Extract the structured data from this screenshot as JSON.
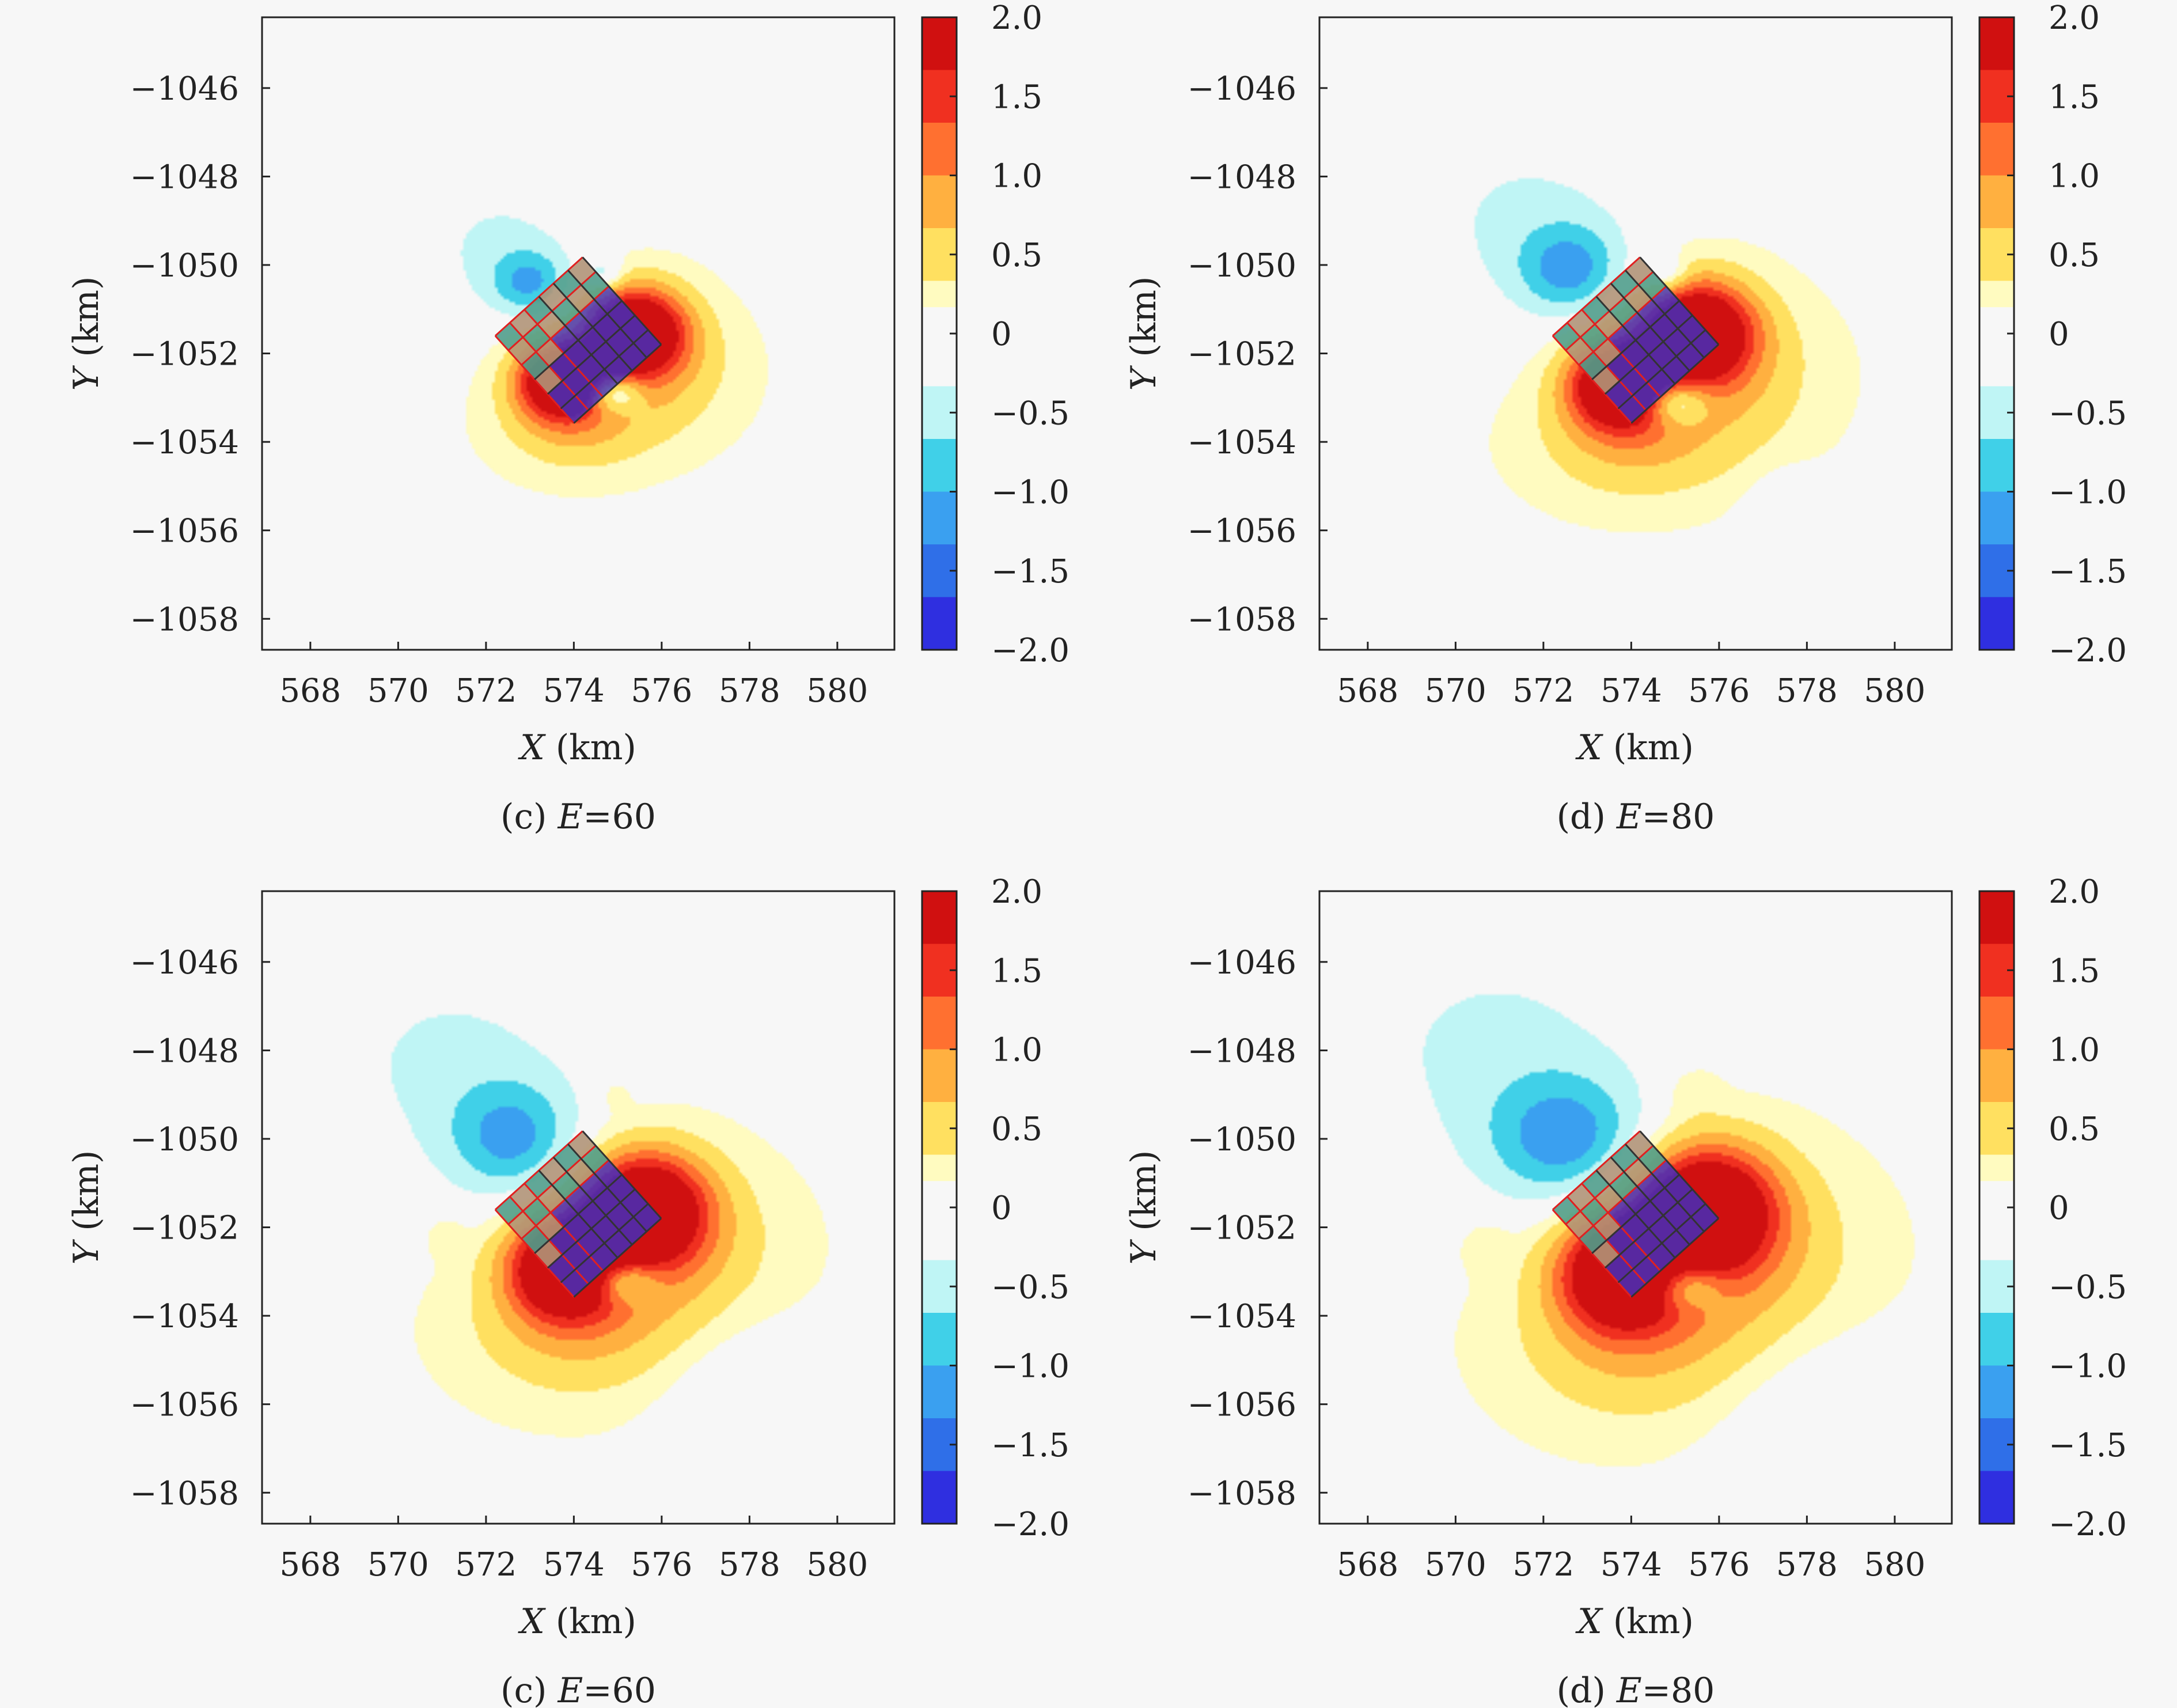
{
  "colors": {
    "background": "#f7f7f7",
    "frame": "#222222",
    "grid_red": "#e02020",
    "grid_green": "#40c040",
    "grid_blue": "#3030d0",
    "grid_dark": "#333333"
  },
  "colorbar": {
    "ticks": [
      {
        "value": 2.0,
        "label": "2.0"
      },
      {
        "value": 1.5,
        "label": "1.5"
      },
      {
        "value": 1.0,
        "label": "1.0"
      },
      {
        "value": 0.5,
        "label": "0.5"
      },
      {
        "value": 0,
        "label": "0"
      },
      {
        "value": -0.5,
        "label": "−0.5"
      },
      {
        "value": -1.0,
        "label": "−1.0"
      },
      {
        "value": -1.5,
        "label": "−1.5"
      },
      {
        "value": -2.0,
        "label": "−2.0"
      }
    ],
    "range": [
      -2.0,
      2.0
    ],
    "colormap": [
      "#2f2fe0",
      "#2f6fe8",
      "#3aa0f0",
      "#40d0e8",
      "#bff5f5",
      "#f7f7f7",
      "#fffbc0",
      "#ffe060",
      "#ffb040",
      "#ff7030",
      "#f03020",
      "#d01010"
    ]
  },
  "chart_data": [
    {
      "type": "heatmap",
      "caption_prefix": "(c) ",
      "caption_var": "E",
      "caption_suffix": "=60",
      "xlabel_var": "X",
      "xlabel_unit": " (km)",
      "ylabel_var": "Y",
      "ylabel_unit": " (km)",
      "xlim": [
        566.9,
        581.3
      ],
      "ylim": [
        -1058.7,
        -1044.4
      ],
      "xticks": [
        568,
        570,
        572,
        574,
        576,
        578,
        580
      ],
      "xtick_labels": [
        "568",
        "570",
        "572",
        "574",
        "576",
        "578",
        "580"
      ],
      "yticks": [
        -1046,
        -1048,
        -1050,
        -1052,
        -1054,
        -1056,
        -1058
      ],
      "ytick_labels": [
        "−1046",
        "−1048",
        "−1050",
        "−1052",
        "−1054",
        "−1056",
        "−1058"
      ],
      "zlim": [
        -2,
        2
      ],
      "fault_center": [
        574.1,
        -1051.7
      ],
      "blobs": [
        {
          "x": 572.3,
          "y": -1049.6,
          "sx": 1.3,
          "sy": 1.1,
          "amp": -0.4
        },
        {
          "x": 573.0,
          "y": -1050.4,
          "sx": 0.6,
          "sy": 0.5,
          "amp": -0.9
        },
        {
          "x": 575.4,
          "y": -1051.5,
          "sx": 0.8,
          "sy": 0.7,
          "amp": 2.6
        },
        {
          "x": 573.7,
          "y": -1052.6,
          "sx": 0.7,
          "sy": 0.6,
          "amp": 2.6
        },
        {
          "x": 575.8,
          "y": -1052.4,
          "sx": 1.3,
          "sy": 1.1,
          "amp": 0.6
        },
        {
          "x": 574.0,
          "y": -1053.6,
          "sx": 1.2,
          "sy": 0.8,
          "amp": 0.6
        },
        {
          "x": 574.9,
          "y": -1052.9,
          "sx": 0.45,
          "sy": 0.3,
          "amp": -1.2
        },
        {
          "x": 574.7,
          "y": -1050.2,
          "sx": 0.3,
          "sy": 0.25,
          "amp": -0.6
        }
      ]
    },
    {
      "type": "heatmap",
      "caption_prefix": "(d) ",
      "caption_var": "E",
      "caption_suffix": "=80",
      "xlabel_var": "X",
      "xlabel_unit": " (km)",
      "ylabel_var": "Y",
      "ylabel_unit": " (km)",
      "xlim": [
        566.9,
        581.3
      ],
      "ylim": [
        -1058.7,
        -1044.4
      ],
      "xticks": [
        568,
        570,
        572,
        574,
        576,
        578,
        580
      ],
      "xtick_labels": [
        "568",
        "570",
        "572",
        "574",
        "576",
        "578",
        "580"
      ],
      "yticks": [
        -1046,
        -1048,
        -1050,
        -1052,
        -1054,
        -1056,
        -1058
      ],
      "ytick_labels": [
        "−1046",
        "−1048",
        "−1050",
        "−1052",
        "−1054",
        "−1056",
        "−1058"
      ],
      "zlim": [
        -2,
        2
      ],
      "fault_center": [
        574.1,
        -1051.7
      ],
      "blobs": [
        {
          "x": 571.6,
          "y": -1049.0,
          "sx": 1.8,
          "sy": 1.5,
          "amp": -0.4
        },
        {
          "x": 572.6,
          "y": -1050.1,
          "sx": 0.8,
          "sy": 0.7,
          "amp": -1.0
        },
        {
          "x": 575.5,
          "y": -1051.5,
          "sx": 0.9,
          "sy": 0.8,
          "amp": 2.6
        },
        {
          "x": 573.7,
          "y": -1052.7,
          "sx": 0.8,
          "sy": 0.7,
          "amp": 2.6
        },
        {
          "x": 576.0,
          "y": -1052.5,
          "sx": 1.6,
          "sy": 1.3,
          "amp": 0.6
        },
        {
          "x": 574.0,
          "y": -1054.0,
          "sx": 1.6,
          "sy": 1.0,
          "amp": 0.6
        },
        {
          "x": 575.0,
          "y": -1053.1,
          "sx": 0.5,
          "sy": 0.35,
          "amp": -1.2
        },
        {
          "x": 574.8,
          "y": -1050.2,
          "sx": 0.35,
          "sy": 0.3,
          "amp": -0.6
        },
        {
          "x": 577.5,
          "y": -1055.5,
          "sx": 0.6,
          "sy": 0.6,
          "amp": -0.3
        }
      ]
    },
    {
      "type": "heatmap",
      "caption_prefix": "(c) ",
      "caption_var": "E",
      "caption_suffix": "=60",
      "xlabel_var": "X",
      "xlabel_unit": " (km)",
      "ylabel_var": "Y",
      "ylabel_unit": " (km)",
      "xlim": [
        566.9,
        581.3
      ],
      "ylim": [
        -1058.7,
        -1044.4
      ],
      "xticks": [
        568,
        570,
        572,
        574,
        576,
        578,
        580
      ],
      "xtick_labels": [
        "568",
        "570",
        "572",
        "574",
        "576",
        "578",
        "580"
      ],
      "yticks": [
        -1046,
        -1048,
        -1050,
        -1052,
        -1054,
        -1056,
        -1058
      ],
      "ytick_labels": [
        "−1046",
        "−1048",
        "−1050",
        "−1052",
        "−1054",
        "−1056",
        "−1058"
      ],
      "zlim": [
        -2,
        2
      ],
      "fault_center": [
        574.1,
        -1051.7
      ],
      "blobs": [
        {
          "x": 571.2,
          "y": -1048.3,
          "sx": 2.2,
          "sy": 1.8,
          "amp": -0.4
        },
        {
          "x": 572.6,
          "y": -1050.0,
          "sx": 1.0,
          "sy": 0.9,
          "amp": -1.0
        },
        {
          "x": 575.6,
          "y": -1051.6,
          "sx": 1.0,
          "sy": 0.9,
          "amp": 2.6
        },
        {
          "x": 573.8,
          "y": -1052.9,
          "sx": 0.9,
          "sy": 0.8,
          "amp": 2.6
        },
        {
          "x": 576.2,
          "y": -1052.6,
          "sx": 1.8,
          "sy": 1.5,
          "amp": 0.6
        },
        {
          "x": 574.0,
          "y": -1054.3,
          "sx": 1.8,
          "sy": 1.2,
          "amp": 0.6
        },
        {
          "x": 575.1,
          "y": -1053.2,
          "sx": 0.55,
          "sy": 0.35,
          "amp": -1.2
        },
        {
          "x": 577.8,
          "y": -1055.8,
          "sx": 1.3,
          "sy": 1.3,
          "amp": -0.35
        },
        {
          "x": 571.1,
          "y": -1052.2,
          "sx": 0.3,
          "sy": 0.3,
          "amp": 0.25
        },
        {
          "x": 574.9,
          "y": -1049.0,
          "sx": 0.3,
          "sy": 0.3,
          "amp": 0.2
        }
      ]
    },
    {
      "type": "heatmap",
      "caption_prefix": "(d) ",
      "caption_var": "E",
      "caption_suffix": "=80",
      "xlabel_var": "X",
      "xlabel_unit": " (km)",
      "ylabel_var": "Y",
      "ylabel_unit": " (km)",
      "xlim": [
        566.9,
        581.3
      ],
      "ylim": [
        -1058.7,
        -1044.4
      ],
      "xticks": [
        568,
        570,
        572,
        574,
        576,
        578,
        580
      ],
      "xtick_labels": [
        "568",
        "570",
        "572",
        "574",
        "576",
        "578",
        "580"
      ],
      "yticks": [
        -1046,
        -1048,
        -1050,
        -1052,
        -1054,
        -1056,
        -1058
      ],
      "ytick_labels": [
        "−1046",
        "−1048",
        "−1050",
        "−1052",
        "−1054",
        "−1056",
        "−1058"
      ],
      "zlim": [
        -2,
        2
      ],
      "fault_center": [
        574.1,
        -1051.7
      ],
      "blobs": [
        {
          "x": 570.9,
          "y": -1048.0,
          "sx": 2.6,
          "sy": 2.1,
          "amp": -0.4
        },
        {
          "x": 572.5,
          "y": -1050.0,
          "sx": 1.2,
          "sy": 1.0,
          "amp": -1.1
        },
        {
          "x": 575.7,
          "y": -1051.6,
          "sx": 1.1,
          "sy": 1.0,
          "amp": 2.6
        },
        {
          "x": 573.8,
          "y": -1053.0,
          "sx": 1.0,
          "sy": 0.9,
          "amp": 2.6
        },
        {
          "x": 576.4,
          "y": -1052.7,
          "sx": 2.0,
          "sy": 1.7,
          "amp": 0.65
        },
        {
          "x": 574.0,
          "y": -1054.6,
          "sx": 2.0,
          "sy": 1.4,
          "amp": 0.6
        },
        {
          "x": 575.2,
          "y": -1053.3,
          "sx": 0.6,
          "sy": 0.4,
          "amp": -1.2
        },
        {
          "x": 578.2,
          "y": -1056.3,
          "sx": 1.6,
          "sy": 1.5,
          "amp": -0.35
        },
        {
          "x": 570.7,
          "y": -1052.4,
          "sx": 0.4,
          "sy": 0.4,
          "amp": 0.25
        },
        {
          "x": 575.4,
          "y": -1048.9,
          "sx": 0.45,
          "sy": 0.4,
          "amp": 0.25
        }
      ]
    }
  ]
}
